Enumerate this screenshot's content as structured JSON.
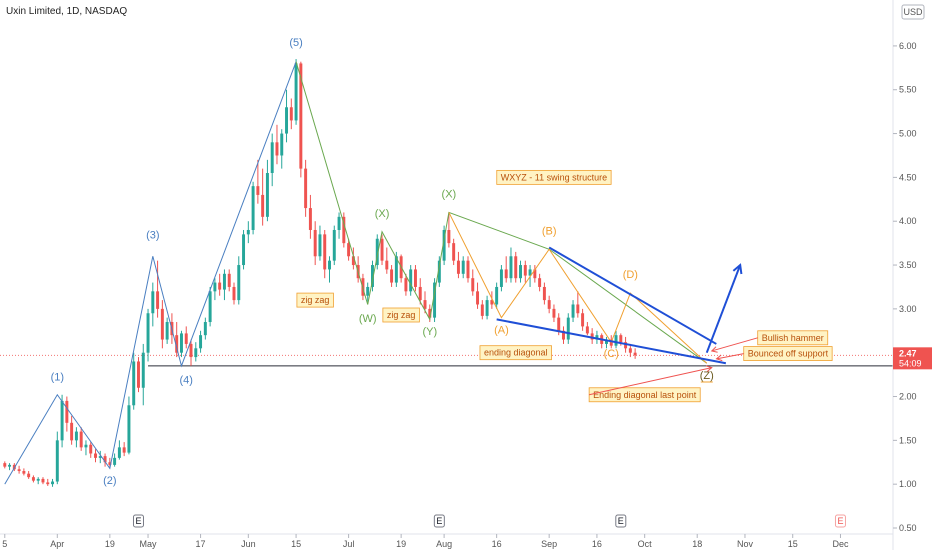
{
  "header": {
    "symbol_title": "Uxin Limited, 1D, NASDAQ",
    "currency": "USD"
  },
  "price_tags": {
    "last": "2.47",
    "countdown": "54:09"
  },
  "colors": {
    "up": "#26a69a",
    "down": "#ef5350",
    "impulse": "#4a7fc1",
    "corrective_green": "#6aa84f",
    "orange": "#f0a030",
    "trend_blue": "#1f4fd6",
    "support": "#2a2e39",
    "note_bg": "#fff3c4",
    "note_text": "#b8500a",
    "price_tag": "#ef5350"
  },
  "chart_data": {
    "type": "candlestick",
    "title": "Uxin Limited, 1D, NASDAQ",
    "y_axis": {
      "ticks": [
        "6.00",
        "5.50",
        "5.00",
        "4.50",
        "4.00",
        "3.50",
        "3.00",
        "2.50",
        "2.00",
        "1.50",
        "1.00",
        "0.50"
      ],
      "ylim": [
        0.5,
        6.25
      ]
    },
    "x_axis": {
      "ticks": [
        {
          "label": "5",
          "x": 1
        },
        {
          "label": "Apr",
          "x": 12
        },
        {
          "label": "19",
          "x": 23
        },
        {
          "label": "May",
          "x": 31
        },
        {
          "label": "17",
          "x": 42
        },
        {
          "label": "Jun",
          "x": 52
        },
        {
          "label": "15",
          "x": 62
        },
        {
          "label": "Jul",
          "x": 73
        },
        {
          "label": "19",
          "x": 84
        },
        {
          "label": "Aug",
          "x": 93
        },
        {
          "label": "16",
          "x": 104
        },
        {
          "label": "Sep",
          "x": 115
        },
        {
          "label": "16",
          "x": 125
        },
        {
          "label": "Oct",
          "x": 135
        },
        {
          "label": "18",
          "x": 146
        },
        {
          "label": "Nov",
          "x": 156
        },
        {
          "label": "15",
          "x": 166
        },
        {
          "label": "Dec",
          "x": 176
        }
      ],
      "xlim": [
        0,
        187
      ]
    },
    "earnings_markers": [
      {
        "label": "E",
        "x": 29
      },
      {
        "label": "E",
        "x": 92
      },
      {
        "label": "E",
        "x": 130
      },
      {
        "label": "E",
        "x": 176
      }
    ],
    "candles": [
      [
        1.24,
        1.26,
        1.18,
        1.2
      ],
      [
        1.2,
        1.24,
        1.16,
        1.22
      ],
      [
        1.22,
        1.24,
        1.15,
        1.17
      ],
      [
        1.17,
        1.21,
        1.12,
        1.15
      ],
      [
        1.15,
        1.18,
        1.1,
        1.12
      ],
      [
        1.12,
        1.15,
        1.06,
        1.08
      ],
      [
        1.08,
        1.1,
        1.02,
        1.04
      ],
      [
        1.04,
        1.08,
        1.0,
        1.06
      ],
      [
        1.06,
        1.08,
        1.0,
        1.02
      ],
      [
        1.02,
        1.06,
        0.98,
        1.0
      ],
      [
        1.0,
        1.06,
        0.97,
        1.03
      ],
      [
        1.03,
        1.6,
        1.0,
        1.5
      ],
      [
        1.5,
        2.02,
        1.42,
        1.95
      ],
      [
        1.95,
        2.0,
        1.6,
        1.7
      ],
      [
        1.7,
        1.78,
        1.45,
        1.5
      ],
      [
        1.5,
        1.65,
        1.42,
        1.6
      ],
      [
        1.6,
        1.65,
        1.38,
        1.42
      ],
      [
        1.42,
        1.5,
        1.33,
        1.45
      ],
      [
        1.45,
        1.48,
        1.3,
        1.35
      ],
      [
        1.35,
        1.4,
        1.25,
        1.3
      ],
      [
        1.3,
        1.38,
        1.24,
        1.32
      ],
      [
        1.32,
        1.35,
        1.2,
        1.25
      ],
      [
        1.25,
        1.3,
        1.18,
        1.22
      ],
      [
        1.22,
        1.35,
        1.2,
        1.3
      ],
      [
        1.3,
        1.5,
        1.28,
        1.42
      ],
      [
        1.42,
        1.48,
        1.32,
        1.36
      ],
      [
        1.36,
        2.0,
        1.34,
        1.9
      ],
      [
        1.9,
        2.5,
        1.85,
        2.4
      ],
      [
        2.4,
        2.45,
        2.05,
        2.1
      ],
      [
        2.1,
        2.6,
        1.9,
        2.5
      ],
      [
        2.5,
        3.0,
        2.4,
        2.95
      ],
      [
        2.95,
        3.3,
        2.8,
        3.2
      ],
      [
        3.2,
        3.55,
        2.9,
        3.0
      ],
      [
        3.0,
        3.1,
        2.55,
        2.65
      ],
      [
        2.65,
        2.9,
        2.6,
        2.85
      ],
      [
        2.85,
        2.95,
        2.6,
        2.7
      ],
      [
        2.7,
        2.85,
        2.45,
        2.5
      ],
      [
        2.5,
        2.75,
        2.45,
        2.72
      ],
      [
        2.72,
        2.8,
        2.55,
        2.6
      ],
      [
        2.6,
        2.65,
        2.35,
        2.45
      ],
      [
        2.45,
        2.62,
        2.4,
        2.55
      ],
      [
        2.55,
        2.75,
        2.5,
        2.7
      ],
      [
        2.7,
        2.9,
        2.65,
        2.85
      ],
      [
        2.85,
        3.25,
        2.8,
        3.2
      ],
      [
        3.2,
        3.35,
        3.1,
        3.3
      ],
      [
        3.3,
        3.4,
        3.15,
        3.22
      ],
      [
        3.22,
        3.45,
        3.1,
        3.4
      ],
      [
        3.4,
        3.45,
        3.2,
        3.25
      ],
      [
        3.25,
        3.3,
        3.05,
        3.1
      ],
      [
        3.1,
        3.6,
        3.05,
        3.5
      ],
      [
        3.5,
        3.9,
        3.45,
        3.85
      ],
      [
        3.85,
        4.0,
        3.75,
        3.9
      ],
      [
        3.9,
        4.45,
        3.85,
        4.4
      ],
      [
        4.4,
        4.7,
        4.2,
        4.3
      ],
      [
        4.3,
        4.6,
        3.95,
        4.05
      ],
      [
        4.05,
        4.7,
        4.0,
        4.55
      ],
      [
        4.55,
        5.0,
        4.4,
        4.9
      ],
      [
        4.9,
        5.1,
        4.65,
        4.75
      ],
      [
        4.75,
        5.05,
        4.6,
        5.0
      ],
      [
        5.0,
        5.5,
        4.9,
        5.3
      ],
      [
        5.3,
        5.4,
        5.05,
        5.15
      ],
      [
        5.15,
        5.85,
        5.1,
        5.8
      ],
      [
        5.8,
        5.82,
        4.5,
        4.6
      ],
      [
        4.6,
        4.7,
        4.05,
        4.15
      ],
      [
        4.15,
        4.3,
        3.8,
        3.9
      ],
      [
        3.9,
        4.0,
        3.5,
        3.6
      ],
      [
        3.6,
        3.95,
        3.55,
        3.85
      ],
      [
        3.85,
        3.9,
        3.35,
        3.45
      ],
      [
        3.45,
        3.6,
        3.3,
        3.55
      ],
      [
        3.55,
        3.95,
        3.5,
        3.9
      ],
      [
        3.9,
        4.1,
        3.8,
        4.05
      ],
      [
        4.05,
        4.1,
        3.7,
        3.75
      ],
      [
        3.75,
        3.8,
        3.55,
        3.6
      ],
      [
        3.6,
        3.7,
        3.45,
        3.5
      ],
      [
        3.5,
        3.6,
        3.3,
        3.35
      ],
      [
        3.35,
        3.4,
        3.1,
        3.15
      ],
      [
        3.15,
        3.3,
        3.08,
        3.25
      ],
      [
        3.25,
        3.55,
        3.2,
        3.5
      ],
      [
        3.5,
        3.85,
        3.45,
        3.8
      ],
      [
        3.8,
        3.85,
        3.5,
        3.55
      ],
      [
        3.55,
        3.7,
        3.4,
        3.45
      ],
      [
        3.45,
        3.5,
        3.25,
        3.3
      ],
      [
        3.3,
        3.65,
        3.25,
        3.6
      ],
      [
        3.6,
        3.62,
        3.3,
        3.35
      ],
      [
        3.35,
        3.4,
        3.15,
        3.2
      ],
      [
        3.2,
        3.5,
        3.15,
        3.45
      ],
      [
        3.45,
        3.5,
        3.2,
        3.25
      ],
      [
        3.25,
        3.35,
        3.05,
        3.1
      ],
      [
        3.1,
        3.2,
        2.95,
        3.0
      ],
      [
        3.0,
        3.05,
        2.85,
        2.9
      ],
      [
        2.9,
        3.35,
        2.85,
        3.3
      ],
      [
        3.3,
        3.6,
        3.25,
        3.55
      ],
      [
        3.55,
        3.95,
        3.5,
        3.9
      ],
      [
        3.9,
        4.1,
        3.7,
        3.75
      ],
      [
        3.75,
        3.8,
        3.5,
        3.55
      ],
      [
        3.55,
        3.65,
        3.35,
        3.4
      ],
      [
        3.4,
        3.6,
        3.35,
        3.55
      ],
      [
        3.55,
        3.6,
        3.3,
        3.35
      ],
      [
        3.35,
        3.45,
        3.15,
        3.2
      ],
      [
        3.2,
        3.3,
        3.0,
        3.05
      ],
      [
        3.05,
        3.1,
        2.88,
        2.92
      ],
      [
        2.92,
        3.15,
        2.88,
        3.1
      ],
      [
        3.1,
        3.2,
        3.0,
        3.05
      ],
      [
        3.05,
        3.3,
        3.0,
        3.25
      ],
      [
        3.25,
        3.5,
        3.2,
        3.45
      ],
      [
        3.45,
        3.6,
        3.3,
        3.35
      ],
      [
        3.35,
        3.7,
        3.3,
        3.6
      ],
      [
        3.6,
        3.65,
        3.3,
        3.35
      ],
      [
        3.35,
        3.55,
        3.3,
        3.5
      ],
      [
        3.5,
        3.55,
        3.3,
        3.38
      ],
      [
        3.38,
        3.5,
        3.25,
        3.45
      ],
      [
        3.45,
        3.5,
        3.3,
        3.35
      ],
      [
        3.35,
        3.4,
        3.2,
        3.25
      ],
      [
        3.25,
        3.3,
        3.05,
        3.1
      ],
      [
        3.1,
        3.15,
        2.95,
        3.0
      ],
      [
        3.0,
        3.05,
        2.85,
        2.9
      ],
      [
        2.9,
        2.95,
        2.7,
        2.75
      ],
      [
        2.75,
        2.8,
        2.6,
        2.65
      ],
      [
        2.65,
        2.95,
        2.6,
        2.9
      ],
      [
        2.9,
        3.1,
        2.85,
        3.05
      ],
      [
        3.05,
        3.2,
        2.9,
        2.95
      ],
      [
        2.95,
        3.0,
        2.75,
        2.8
      ],
      [
        2.8,
        2.85,
        2.7,
        2.72
      ],
      [
        2.72,
        2.78,
        2.6,
        2.65
      ],
      [
        2.65,
        2.75,
        2.6,
        2.7
      ],
      [
        2.7,
        2.72,
        2.55,
        2.6
      ],
      [
        2.6,
        2.68,
        2.55,
        2.65
      ],
      [
        2.65,
        2.7,
        2.55,
        2.58
      ],
      [
        2.58,
        2.75,
        2.55,
        2.7
      ],
      [
        2.7,
        2.72,
        2.58,
        2.62
      ],
      [
        2.62,
        2.68,
        2.5,
        2.55
      ],
      [
        2.55,
        2.6,
        2.45,
        2.5
      ],
      [
        2.5,
        2.55,
        2.43,
        2.47
      ]
    ],
    "price_line": 2.47,
    "support_line": {
      "y": 2.35,
      "x_start": 31,
      "x_end": 187
    },
    "waves": {
      "impulse": {
        "points": [
          [
            1,
            1.0
          ],
          [
            12,
            2.02
          ],
          [
            23,
            1.18
          ],
          [
            32,
            3.6
          ],
          [
            38,
            2.35
          ],
          [
            62,
            5.82
          ]
        ],
        "labels": [
          {
            "text": "(1)",
            "x": 12,
            "y": 2.18
          },
          {
            "text": "(2)",
            "x": 23,
            "y": 1.0
          },
          {
            "text": "(3)",
            "x": 32,
            "y": 3.8
          },
          {
            "text": "(4)",
            "x": 39,
            "y": 2.15
          },
          {
            "text": "(5)",
            "x": 62,
            "y": 6.0
          }
        ]
      },
      "wxyz": {
        "points": [
          [
            62,
            5.82
          ],
          [
            77,
            3.05
          ],
          [
            80,
            3.88
          ],
          [
            90,
            2.88
          ],
          [
            94,
            4.1
          ],
          [
            115,
            3.68
          ],
          [
            148,
            2.38
          ]
        ],
        "labels": [
          {
            "text": "(W)",
            "x": 77,
            "y": 2.85
          },
          {
            "text": "(X)",
            "x": 80,
            "y": 4.05
          },
          {
            "text": "(Y)",
            "x": 90,
            "y": 2.7
          },
          {
            "text": "(X)",
            "x": 94,
            "y": 4.27
          },
          {
            "text": "(Z)",
            "x": 148,
            "y": 2.2
          }
        ]
      },
      "abcd": {
        "points": [
          [
            94,
            4.1
          ],
          [
            105,
            2.9
          ],
          [
            115,
            3.68
          ],
          [
            128,
            2.62
          ],
          [
            132,
            3.18
          ],
          [
            148,
            2.38
          ]
        ],
        "labels": [
          {
            "text": "(A)",
            "x": 105,
            "y": 2.72
          },
          {
            "text": "(B)",
            "x": 115,
            "y": 3.85
          },
          {
            "text": "(C)",
            "x": 128,
            "y": 2.45
          },
          {
            "text": "(D)",
            "x": 132,
            "y": 3.35
          },
          {
            "text": "(Z)",
            "x": 148,
            "y": 2.2
          }
        ]
      }
    },
    "trendlines": [
      {
        "from": [
          115,
          3.7
        ],
        "to": [
          150,
          2.6
        ]
      },
      {
        "from": [
          104,
          2.88
        ],
        "to": [
          152,
          2.38
        ]
      }
    ],
    "projection_arrow": {
      "from": [
        148,
        2.5
      ],
      "to": [
        155,
        3.5
      ]
    },
    "annotations": [
      {
        "text": "WXYZ - 11 swing structure",
        "x": 116,
        "y": 4.5,
        "pointer": null
      },
      {
        "text": "zig zag",
        "x": 66,
        "y": 3.1,
        "pointer": null
      },
      {
        "text": "zig zag",
        "x": 84,
        "y": 2.93,
        "pointer": null
      },
      {
        "text": "ending diagonal",
        "x": 108,
        "y": 2.5,
        "pointer": null
      },
      {
        "text": "Bullish hammer",
        "x": 166,
        "y": 2.67,
        "pointer": [
          148,
          2.52
        ]
      },
      {
        "text": "Bounced off support",
        "x": 165,
        "y": 2.49,
        "pointer": [
          149,
          2.43
        ]
      },
      {
        "text": "Ending diagonal last point",
        "x": 135,
        "y": 2.02,
        "pointer": [
          148,
          2.33
        ]
      }
    ]
  }
}
